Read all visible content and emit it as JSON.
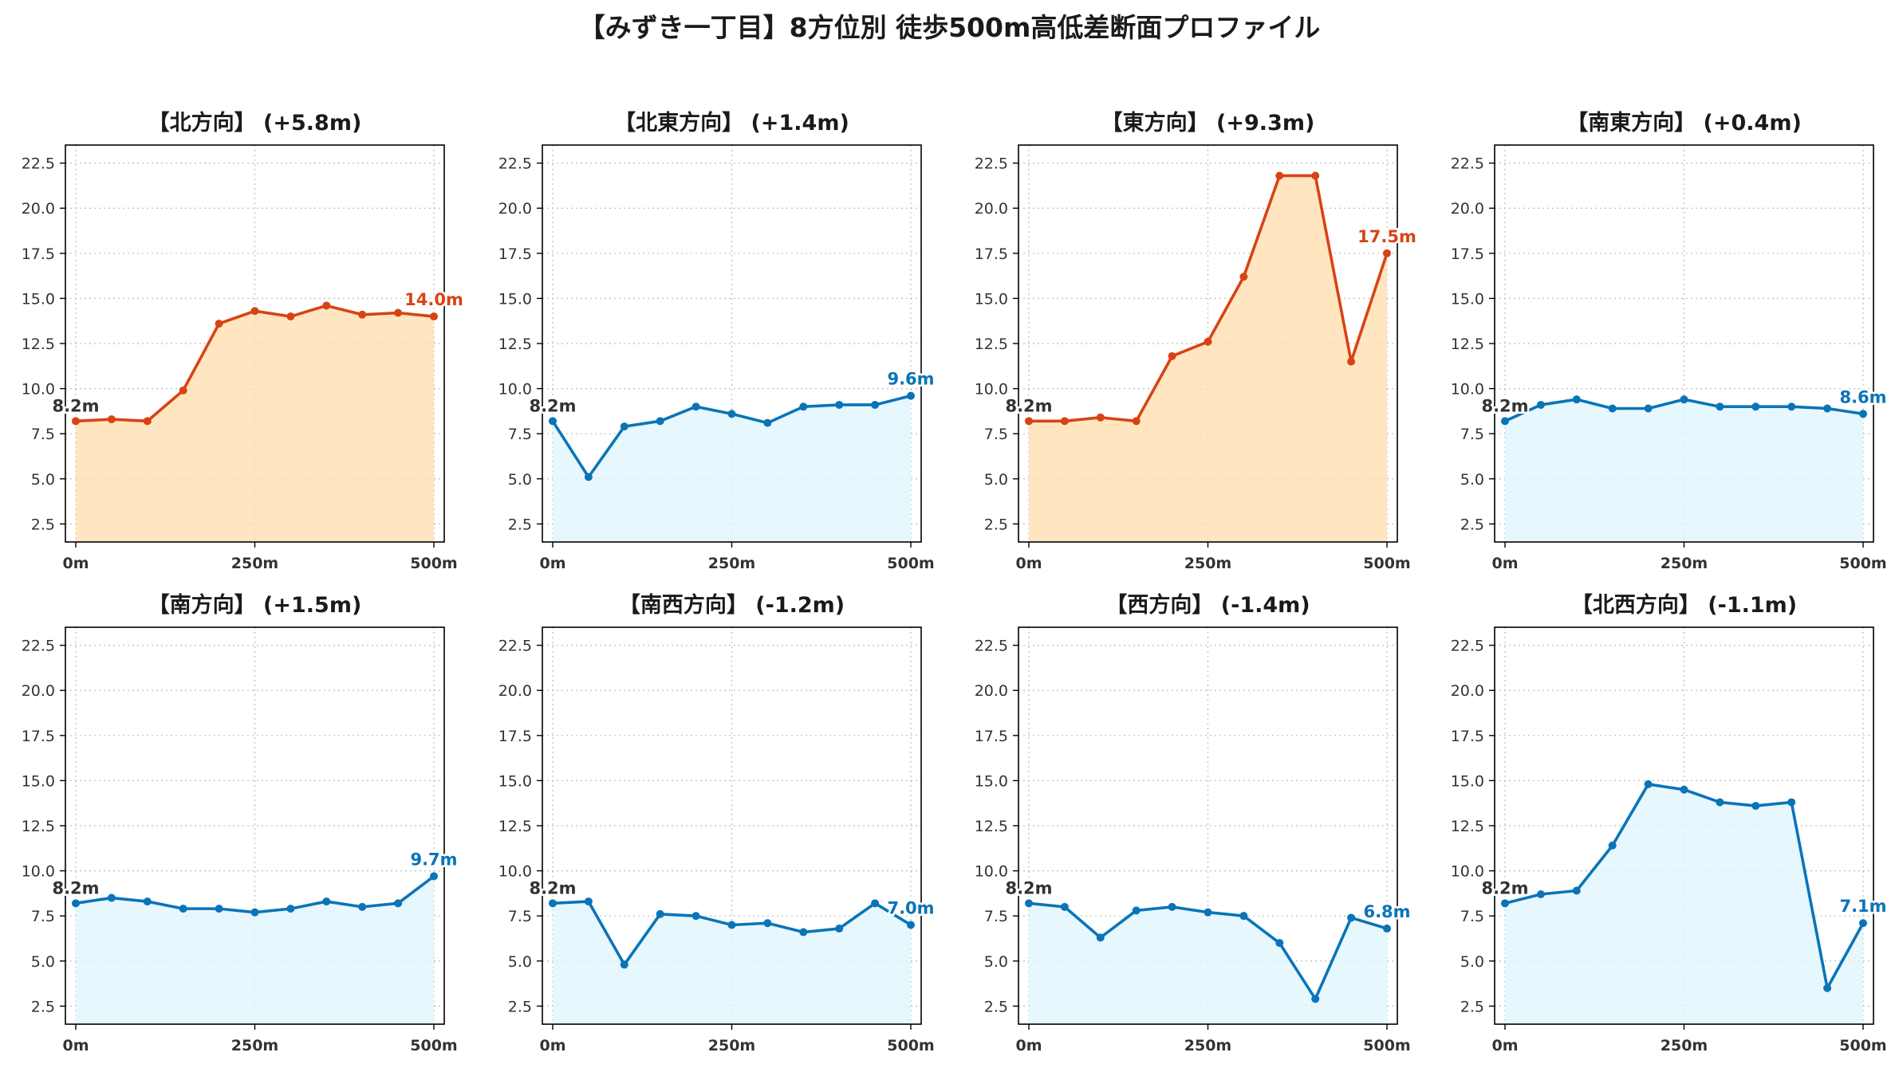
{
  "title": "【みずき一丁目】8方位別 徒歩500m高低差断面プロファイル",
  "colors": {
    "up_line": "#d84315",
    "up_fill": "#ffe0b2",
    "down_line": "#0a74b8",
    "down_fill": "#e1f5fe",
    "start_label": "#333333",
    "grid": "#bdbdbd",
    "axis": "#000000"
  },
  "chart_data": [
    {
      "type": "area",
      "title": "【北方向】 (+5.8m)",
      "trend": "up",
      "x": [
        0,
        50,
        100,
        150,
        200,
        250,
        300,
        350,
        400,
        450,
        500
      ],
      "y": [
        8.2,
        8.3,
        8.2,
        9.9,
        13.6,
        14.3,
        14.0,
        14.6,
        14.1,
        14.2,
        14.0
      ],
      "start_label": "8.2m",
      "end_label": "14.0m",
      "xticks": [
        "0m",
        "250m",
        "500m"
      ],
      "xtick_values": [
        0,
        250,
        500
      ],
      "ylim": [
        1.5,
        23.5
      ],
      "yticks": [
        "2.5",
        "5.0",
        "7.5",
        "10.0",
        "12.5",
        "15.0",
        "17.5",
        "20.0",
        "22.5"
      ],
      "ytick_values": [
        2.5,
        5,
        7.5,
        10,
        12.5,
        15,
        17.5,
        20,
        22.5
      ],
      "grid": true
    },
    {
      "type": "area",
      "title": "【北東方向】 (+1.4m)",
      "trend": "down",
      "x": [
        0,
        50,
        100,
        150,
        200,
        250,
        300,
        350,
        400,
        450,
        500
      ],
      "y": [
        8.2,
        5.1,
        7.9,
        8.2,
        9.0,
        8.6,
        8.1,
        9.0,
        9.1,
        9.1,
        9.6
      ],
      "start_label": "8.2m",
      "end_label": "9.6m",
      "xticks": [
        "0m",
        "250m",
        "500m"
      ],
      "xtick_values": [
        0,
        250,
        500
      ],
      "ylim": [
        1.5,
        23.5
      ],
      "yticks": [
        "2.5",
        "5.0",
        "7.5",
        "10.0",
        "12.5",
        "15.0",
        "17.5",
        "20.0",
        "22.5"
      ],
      "ytick_values": [
        2.5,
        5,
        7.5,
        10,
        12.5,
        15,
        17.5,
        20,
        22.5
      ],
      "grid": true
    },
    {
      "type": "area",
      "title": "【東方向】 (+9.3m)",
      "trend": "up",
      "x": [
        0,
        50,
        100,
        150,
        200,
        250,
        300,
        350,
        400,
        450,
        500
      ],
      "y": [
        8.2,
        8.2,
        8.4,
        8.2,
        11.8,
        12.6,
        16.2,
        21.8,
        21.8,
        11.5,
        17.5
      ],
      "start_label": "8.2m",
      "end_label": "17.5m",
      "xticks": [
        "0m",
        "250m",
        "500m"
      ],
      "xtick_values": [
        0,
        250,
        500
      ],
      "ylim": [
        1.5,
        23.5
      ],
      "yticks": [
        "2.5",
        "5.0",
        "7.5",
        "10.0",
        "12.5",
        "15.0",
        "17.5",
        "20.0",
        "22.5"
      ],
      "ytick_values": [
        2.5,
        5,
        7.5,
        10,
        12.5,
        15,
        17.5,
        20,
        22.5
      ],
      "grid": true
    },
    {
      "type": "area",
      "title": "【南東方向】 (+0.4m)",
      "trend": "down",
      "x": [
        0,
        50,
        100,
        150,
        200,
        250,
        300,
        350,
        400,
        450,
        500
      ],
      "y": [
        8.2,
        9.1,
        9.4,
        8.9,
        8.9,
        9.4,
        9.0,
        9.0,
        9.0,
        8.9,
        8.6
      ],
      "start_label": "8.2m",
      "end_label": "8.6m",
      "xticks": [
        "0m",
        "250m",
        "500m"
      ],
      "xtick_values": [
        0,
        250,
        500
      ],
      "ylim": [
        1.5,
        23.5
      ],
      "yticks": [
        "2.5",
        "5.0",
        "7.5",
        "10.0",
        "12.5",
        "15.0",
        "17.5",
        "20.0",
        "22.5"
      ],
      "ytick_values": [
        2.5,
        5,
        7.5,
        10,
        12.5,
        15,
        17.5,
        20,
        22.5
      ],
      "grid": true
    },
    {
      "type": "area",
      "title": "【南方向】 (+1.5m)",
      "trend": "down",
      "x": [
        0,
        50,
        100,
        150,
        200,
        250,
        300,
        350,
        400,
        450,
        500
      ],
      "y": [
        8.2,
        8.5,
        8.3,
        7.9,
        7.9,
        7.7,
        7.9,
        8.3,
        8.0,
        8.2,
        9.7
      ],
      "start_label": "8.2m",
      "end_label": "9.7m",
      "xticks": [
        "0m",
        "250m",
        "500m"
      ],
      "xtick_values": [
        0,
        250,
        500
      ],
      "ylim": [
        1.5,
        23.5
      ],
      "yticks": [
        "2.5",
        "5.0",
        "7.5",
        "10.0",
        "12.5",
        "15.0",
        "17.5",
        "20.0",
        "22.5"
      ],
      "ytick_values": [
        2.5,
        5,
        7.5,
        10,
        12.5,
        15,
        17.5,
        20,
        22.5
      ],
      "grid": true
    },
    {
      "type": "area",
      "title": "【南西方向】 (-1.2m)",
      "trend": "down",
      "x": [
        0,
        50,
        100,
        150,
        200,
        250,
        300,
        350,
        400,
        450,
        500
      ],
      "y": [
        8.2,
        8.3,
        4.8,
        7.6,
        7.5,
        7.0,
        7.1,
        6.6,
        6.8,
        8.2,
        7.0
      ],
      "start_label": "8.2m",
      "end_label": "7.0m",
      "xticks": [
        "0m",
        "250m",
        "500m"
      ],
      "xtick_values": [
        0,
        250,
        500
      ],
      "ylim": [
        1.5,
        23.5
      ],
      "yticks": [
        "2.5",
        "5.0",
        "7.5",
        "10.0",
        "12.5",
        "15.0",
        "17.5",
        "20.0",
        "22.5"
      ],
      "ytick_values": [
        2.5,
        5,
        7.5,
        10,
        12.5,
        15,
        17.5,
        20,
        22.5
      ],
      "grid": true
    },
    {
      "type": "area",
      "title": "【西方向】 (-1.4m)",
      "trend": "down",
      "x": [
        0,
        50,
        100,
        150,
        200,
        250,
        300,
        350,
        400,
        450,
        500
      ],
      "y": [
        8.2,
        8.0,
        6.3,
        7.8,
        8.0,
        7.7,
        7.5,
        6.0,
        2.9,
        7.4,
        6.8
      ],
      "start_label": "8.2m",
      "end_label": "6.8m",
      "xticks": [
        "0m",
        "250m",
        "500m"
      ],
      "xtick_values": [
        0,
        250,
        500
      ],
      "ylim": [
        1.5,
        23.5
      ],
      "yticks": [
        "2.5",
        "5.0",
        "7.5",
        "10.0",
        "12.5",
        "15.0",
        "17.5",
        "20.0",
        "22.5"
      ],
      "ytick_values": [
        2.5,
        5,
        7.5,
        10,
        12.5,
        15,
        17.5,
        20,
        22.5
      ],
      "grid": true
    },
    {
      "type": "area",
      "title": "【北西方向】 (-1.1m)",
      "trend": "down",
      "x": [
        0,
        50,
        100,
        150,
        200,
        250,
        300,
        350,
        400,
        450,
        500
      ],
      "y": [
        8.2,
        8.7,
        8.9,
        11.4,
        14.8,
        14.5,
        13.8,
        13.6,
        13.8,
        3.5,
        7.1
      ],
      "start_label": "8.2m",
      "end_label": "7.1m",
      "xticks": [
        "0m",
        "250m",
        "500m"
      ],
      "xtick_values": [
        0,
        250,
        500
      ],
      "ylim": [
        1.5,
        23.5
      ],
      "yticks": [
        "2.5",
        "5.0",
        "7.5",
        "10.0",
        "12.5",
        "15.0",
        "17.5",
        "20.0",
        "22.5"
      ],
      "ytick_values": [
        2.5,
        5,
        7.5,
        10,
        12.5,
        15,
        17.5,
        20,
        22.5
      ],
      "grid": true
    }
  ]
}
